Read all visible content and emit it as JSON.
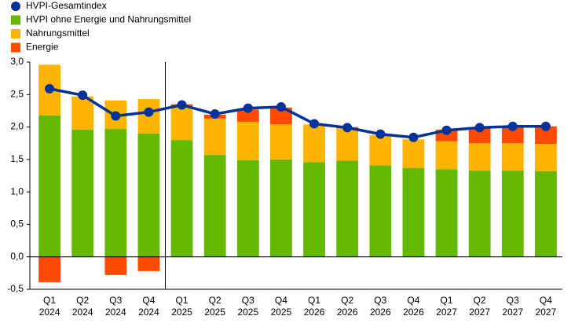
{
  "chart_data": {
    "type": "bar",
    "stacked": true,
    "grid": false,
    "legend": "top-left",
    "categories": [
      [
        "Q1",
        "2024"
      ],
      [
        "Q2",
        "2024"
      ],
      [
        "Q3",
        "2024"
      ],
      [
        "Q4",
        "2024"
      ],
      [
        "Q1",
        "2025"
      ],
      [
        "Q2",
        "2025"
      ],
      [
        "Q3",
        "2025"
      ],
      [
        "Q4",
        "2025"
      ],
      [
        "Q1",
        "2026"
      ],
      [
        "Q2",
        "2026"
      ],
      [
        "Q3",
        "2026"
      ],
      [
        "Q4",
        "2026"
      ],
      [
        "Q1",
        "2027"
      ],
      [
        "Q2",
        "2027"
      ],
      [
        "Q3",
        "2027"
      ],
      [
        "Q4",
        "2027"
      ]
    ],
    "series": [
      {
        "name": "HVPI-Gesamtindex",
        "type": "line",
        "color": "#003299",
        "values": [
          2.59,
          2.49,
          2.17,
          2.23,
          2.34,
          2.2,
          2.29,
          2.31,
          2.05,
          1.99,
          1.89,
          1.84,
          1.95,
          1.99,
          2.01,
          2.01
        ]
      },
      {
        "name": "HVPI ohne Energie und Nahrungsmittel",
        "type": "bar",
        "color": "#65b800",
        "values": [
          2.18,
          1.96,
          1.97,
          1.9,
          1.8,
          1.57,
          1.49,
          1.5,
          1.46,
          1.48,
          1.41,
          1.37,
          1.35,
          1.33,
          1.33,
          1.32
        ]
      },
      {
        "name": "Nahrungsmittel",
        "type": "bar",
        "color": "#ffb400",
        "values": [
          0.78,
          0.51,
          0.44,
          0.53,
          0.52,
          0.56,
          0.59,
          0.54,
          0.58,
          0.5,
          0.46,
          0.44,
          0.43,
          0.42,
          0.42,
          0.42
        ]
      },
      {
        "name": "Energie",
        "type": "bar",
        "color": "#ff4b00",
        "values": [
          -0.39,
          0,
          -0.28,
          -0.22,
          0.03,
          0.06,
          0.19,
          0.26,
          0,
          0.02,
          0,
          0,
          0.18,
          0.25,
          0.27,
          0.27
        ]
      }
    ],
    "ylim": [
      -0.5,
      3.0
    ],
    "yticks": [
      {
        "value": -0.5,
        "label": "-0,5"
      },
      {
        "value": 0,
        "label": "0,0"
      },
      {
        "value": 0.5,
        "label": "0,5"
      },
      {
        "value": 1.0,
        "label": "1,0"
      },
      {
        "value": 1.5,
        "label": "1,5"
      },
      {
        "value": 2.0,
        "label": "2,0"
      },
      {
        "value": 2.5,
        "label": "2,5"
      },
      {
        "value": 3.0,
        "label": "3,0"
      }
    ]
  }
}
